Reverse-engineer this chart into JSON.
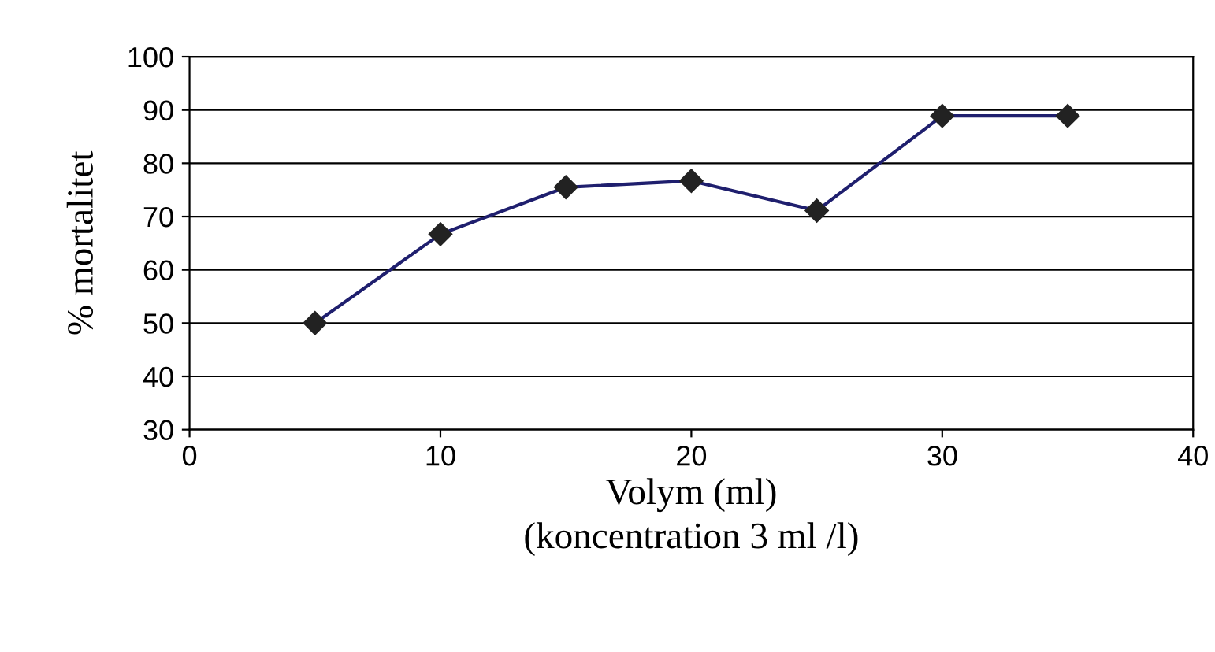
{
  "chart_data": {
    "type": "line",
    "xlabel": "Volym (ml)\n(koncentration 3 ml /l)",
    "ylabel": "% mortalitet",
    "x": [
      5,
      10,
      15,
      20,
      25,
      30,
      35
    ],
    "series": [
      {
        "color": "#1f1f6e",
        "values": [
          50,
          66.7,
          75.5,
          76.7,
          71.1,
          88.9,
          88.9
        ]
      }
    ],
    "marker": "diamond",
    "line_style": "solid",
    "xlim": [
      0,
      40
    ],
    "xticks": [
      0,
      10,
      20,
      30,
      40
    ],
    "ylim": [
      30,
      100
    ],
    "yticks": [
      30,
      40,
      50,
      60,
      70,
      80,
      90,
      100
    ],
    "grid": "y",
    "legend": false
  }
}
